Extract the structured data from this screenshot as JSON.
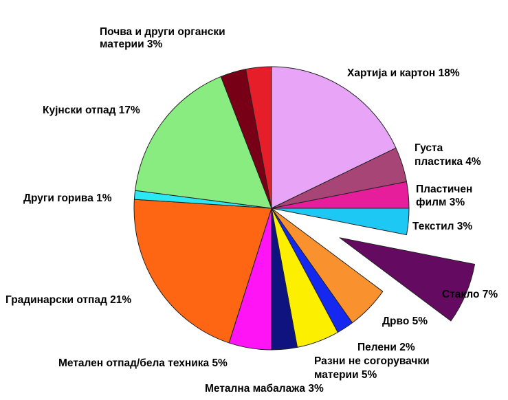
{
  "chart_data": {
    "type": "pie",
    "title": "",
    "slices": [
      {
        "label": "Хартија и картон 18%",
        "value": 18,
        "color": "#E8A4F7"
      },
      {
        "label": "Густа пластика 4%",
        "value": 4,
        "color": "#A64576"
      },
      {
        "label": "Пластичен филм 3%",
        "value": 3,
        "color": "#E61E9B"
      },
      {
        "label": "Текстил 3%",
        "value": 3,
        "color": "#1EC8F5"
      },
      {
        "label": "Стакло 7%",
        "value": 7,
        "color": "#650A61",
        "exploded": true
      },
      {
        "label": "Дрво 5%",
        "value": 5,
        "color": "#F9922E"
      },
      {
        "label": "Пелени 2%",
        "value": 2,
        "color": "#1428F0"
      },
      {
        "label": "Разни не согорувачки материи 5%",
        "value": 5,
        "color": "#FCF000"
      },
      {
        "label": "Метална мабалажа 3%",
        "value": 3,
        "color": "#0E1380"
      },
      {
        "label": "Метален отпад/бела техника 5%",
        "value": 5,
        "color": "#FF14F5"
      },
      {
        "label": "Градинарски отпад 21%",
        "value": 21,
        "color": "#FF6614"
      },
      {
        "label": "Други горива 1%",
        "value": 1,
        "color": "#2BE8F2"
      },
      {
        "label": "Кујнски отпад 17%",
        "value": 17,
        "color": "#88EC80"
      },
      {
        "label": "Почва и други органски материи 3%",
        "value": 3,
        "color": "#780016"
      },
      {
        "label": "",
        "value": 3,
        "color": "#E61E2A"
      }
    ]
  }
}
